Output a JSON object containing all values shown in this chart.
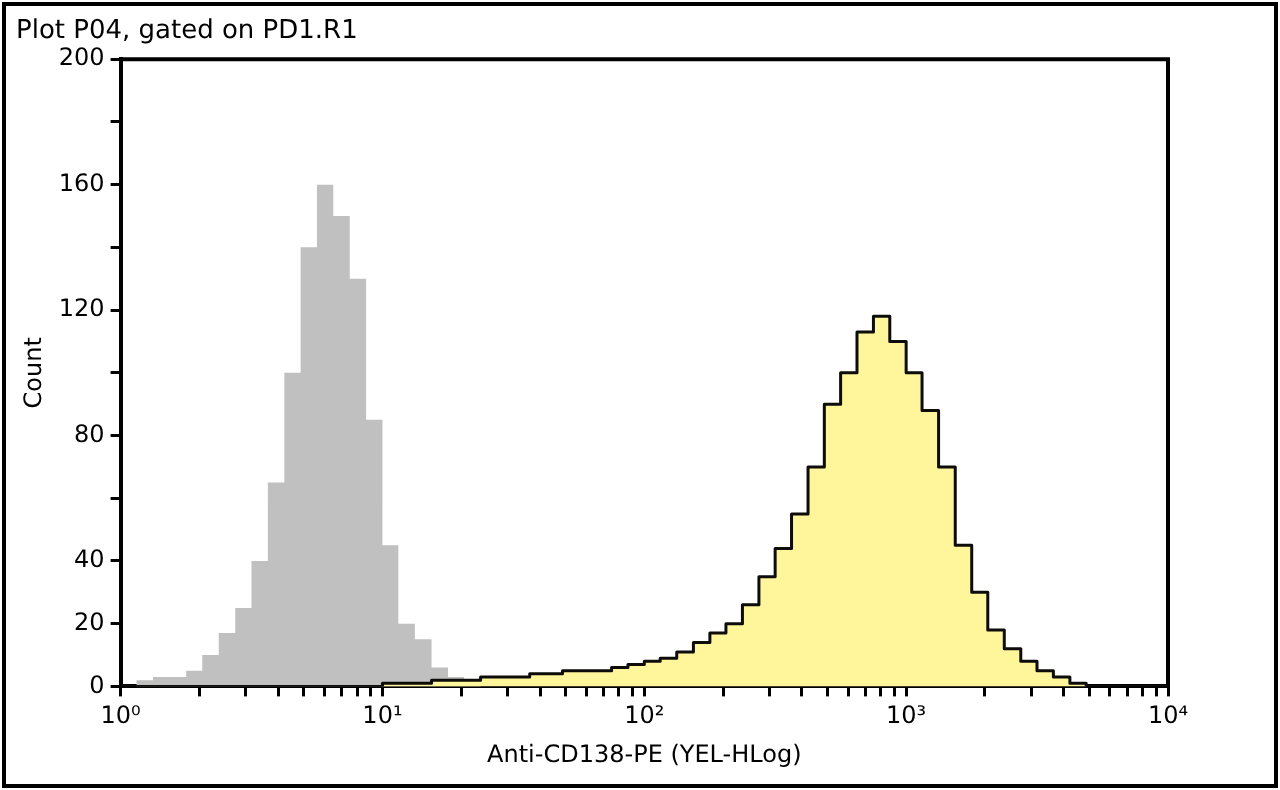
{
  "chart_data": {
    "type": "histogram",
    "title": "Plot P04, gated on PD1.R1",
    "xlabel": "Anti-CD138-PE (YEL-HLog)",
    "ylabel": "Count",
    "log": "x",
    "bins": [
      1,
      1.15,
      1.33,
      1.54,
      1.78,
      2.05,
      2.37,
      2.74,
      3.16,
      3.65,
      4.22,
      4.87,
      5.62,
      6.49,
      7.5,
      8.66,
      10,
      11.5,
      13.3,
      15.4,
      17.8,
      20.5,
      23.7,
      27.4,
      31.6,
      36.5,
      42.2,
      48.7,
      56.2,
      64.9,
      75,
      86.6,
      100,
      115,
      133,
      154,
      178,
      205,
      237,
      274,
      316,
      365,
      422,
      487,
      562,
      649,
      750,
      866,
      1000,
      1150,
      1330,
      1540,
      1780,
      2050,
      2370,
      2740,
      3160,
      3650,
      4220,
      4870,
      5620,
      6490,
      7500,
      8660,
      10000
    ],
    "series": [
      {
        "color": "#c0c0c0",
        "values": [
          0,
          2,
          3,
          3,
          5,
          10,
          17,
          25,
          40,
          65,
          100,
          140,
          160,
          150,
          130,
          85,
          45,
          20,
          15,
          6,
          3,
          1,
          0,
          0,
          0,
          0,
          0,
          0,
          0,
          0,
          0,
          0,
          0,
          0,
          0,
          0,
          0,
          0,
          0,
          0,
          0,
          0,
          0,
          0,
          0,
          0,
          0,
          0,
          0,
          0,
          0,
          0,
          0,
          0,
          0,
          0,
          0,
          0,
          0,
          0,
          0,
          0,
          0,
          0
        ]
      },
      {
        "color": "#fff59a",
        "values": [
          0,
          0,
          0,
          0,
          0,
          0,
          0,
          0,
          0,
          0,
          0,
          0,
          0,
          0,
          0,
          0,
          1,
          1,
          1,
          2,
          2,
          2,
          3,
          3,
          3,
          4,
          4,
          5,
          5,
          5,
          6,
          7,
          8,
          9,
          11,
          14,
          17,
          20,
          26,
          35,
          44,
          55,
          70,
          90,
          100,
          113,
          118,
          110,
          100,
          88,
          70,
          45,
          30,
          18,
          12,
          8,
          5,
          3,
          1,
          0,
          0,
          0,
          0,
          0
        ]
      }
    ],
    "xlim": [
      1,
      10000
    ],
    "xticks": [
      {
        "value": 1,
        "label": "10⁰"
      },
      {
        "value": 2,
        "label": null
      },
      {
        "value": 3,
        "label": null
      },
      {
        "value": 4,
        "label": null
      },
      {
        "value": 5,
        "label": null
      },
      {
        "value": 6,
        "label": null
      },
      {
        "value": 7,
        "label": null
      },
      {
        "value": 8,
        "label": null
      },
      {
        "value": 9,
        "label": null
      },
      {
        "value": 10,
        "label": "10¹"
      },
      {
        "value": 20,
        "label": null
      },
      {
        "value": 30,
        "label": null
      },
      {
        "value": 40,
        "label": null
      },
      {
        "value": 50,
        "label": null
      },
      {
        "value": 60,
        "label": null
      },
      {
        "value": 70,
        "label": null
      },
      {
        "value": 80,
        "label": null
      },
      {
        "value": 90,
        "label": null
      },
      {
        "value": 100,
        "label": "10²"
      },
      {
        "value": 200,
        "label": null
      },
      {
        "value": 300,
        "label": null
      },
      {
        "value": 400,
        "label": null
      },
      {
        "value": 500,
        "label": null
      },
      {
        "value": 600,
        "label": null
      },
      {
        "value": 700,
        "label": null
      },
      {
        "value": 800,
        "label": null
      },
      {
        "value": 900,
        "label": null
      },
      {
        "value": 1000,
        "label": "10³"
      },
      {
        "value": 2000,
        "label": null
      },
      {
        "value": 3000,
        "label": null
      },
      {
        "value": 4000,
        "label": null
      },
      {
        "value": 5000,
        "label": null
      },
      {
        "value": 6000,
        "label": null
      },
      {
        "value": 7000,
        "label": null
      },
      {
        "value": 8000,
        "label": null
      },
      {
        "value": 9000,
        "label": null
      },
      {
        "value": 10000,
        "label": "10⁴"
      }
    ],
    "ylim": [
      0,
      200
    ],
    "yticks": [
      0,
      20,
      40,
      {
        "value": 60,
        "label": null
      },
      80,
      {
        "value": 100,
        "label": null
      },
      120,
      {
        "value": 140,
        "label": null
      },
      160,
      {
        "value": 180,
        "label": null
      },
      200
    ],
    "grid": false,
    "legend": false
  }
}
